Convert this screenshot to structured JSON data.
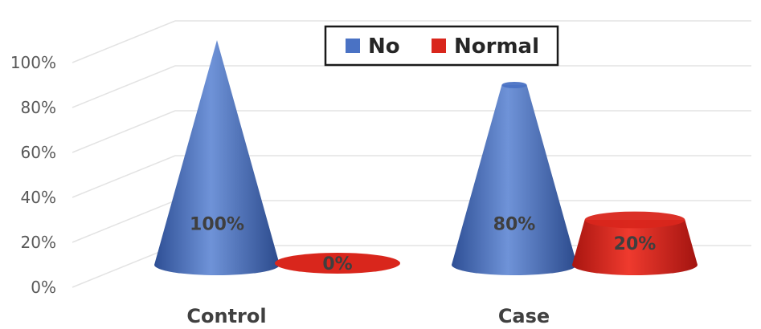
{
  "chart_data": {
    "type": "bar",
    "categories": [
      "Control",
      "Case"
    ],
    "series": [
      {
        "name": "No",
        "values": [
          100,
          80
        ],
        "labels": [
          "100%",
          "80%"
        ]
      },
      {
        "name": "Normal",
        "values": [
          0,
          20
        ],
        "labels": [
          "0%",
          "20%"
        ]
      }
    ],
    "yticks": [
      "0%",
      "20%",
      "40%",
      "60%",
      "80%",
      "100%"
    ],
    "ylim": [
      0,
      100
    ],
    "grid": true,
    "legend_position": "top-center",
    "bar_shape": "3d-cone"
  },
  "colors": {
    "no": "#4a72c4",
    "normal": "#d9261c",
    "grid": "#e3e3e3"
  }
}
